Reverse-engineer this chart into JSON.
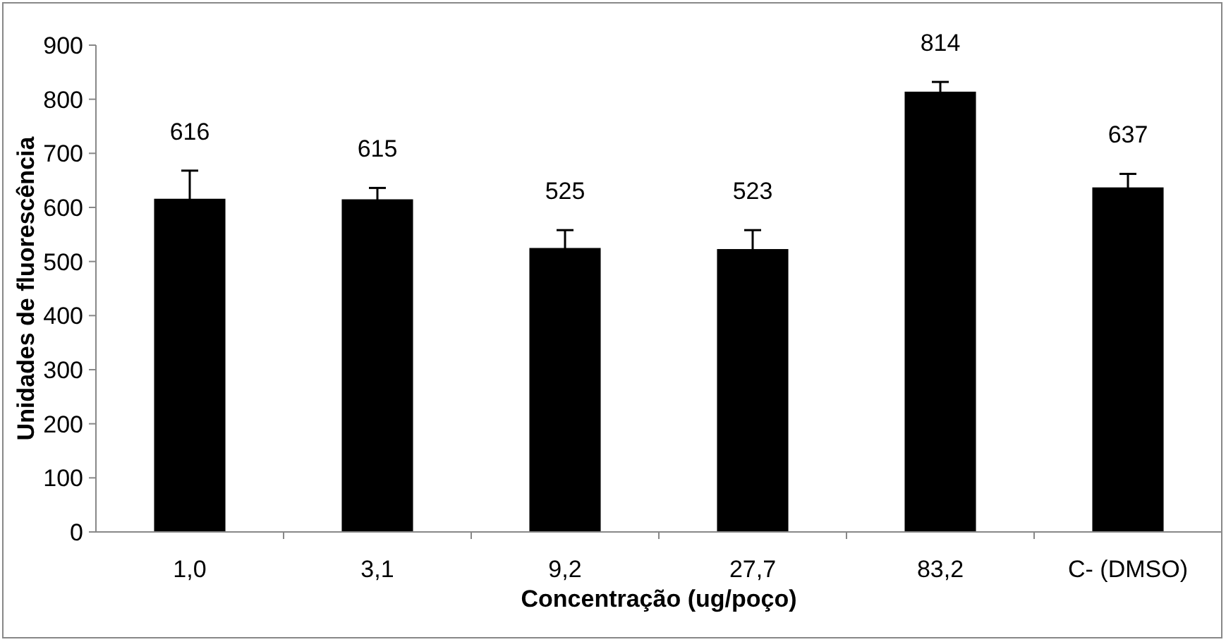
{
  "chart_data": {
    "type": "bar",
    "xlabel": "Concentração (ug/poço)",
    "ylabel": "Unidades de fluorescência",
    "categories": [
      "1,0",
      "3,1",
      "9,2",
      "27,7",
      "83,2",
      "C- (DMSO)"
    ],
    "values": [
      616,
      615,
      525,
      523,
      814,
      637
    ],
    "errors": [
      52,
      21,
      33,
      35,
      18,
      25
    ],
    "color": "#000000",
    "ylim": [
      0,
      900
    ],
    "yticks": [
      0,
      100,
      200,
      300,
      400,
      500,
      600,
      700,
      800,
      900
    ],
    "data_labels": true,
    "grid": false
  }
}
